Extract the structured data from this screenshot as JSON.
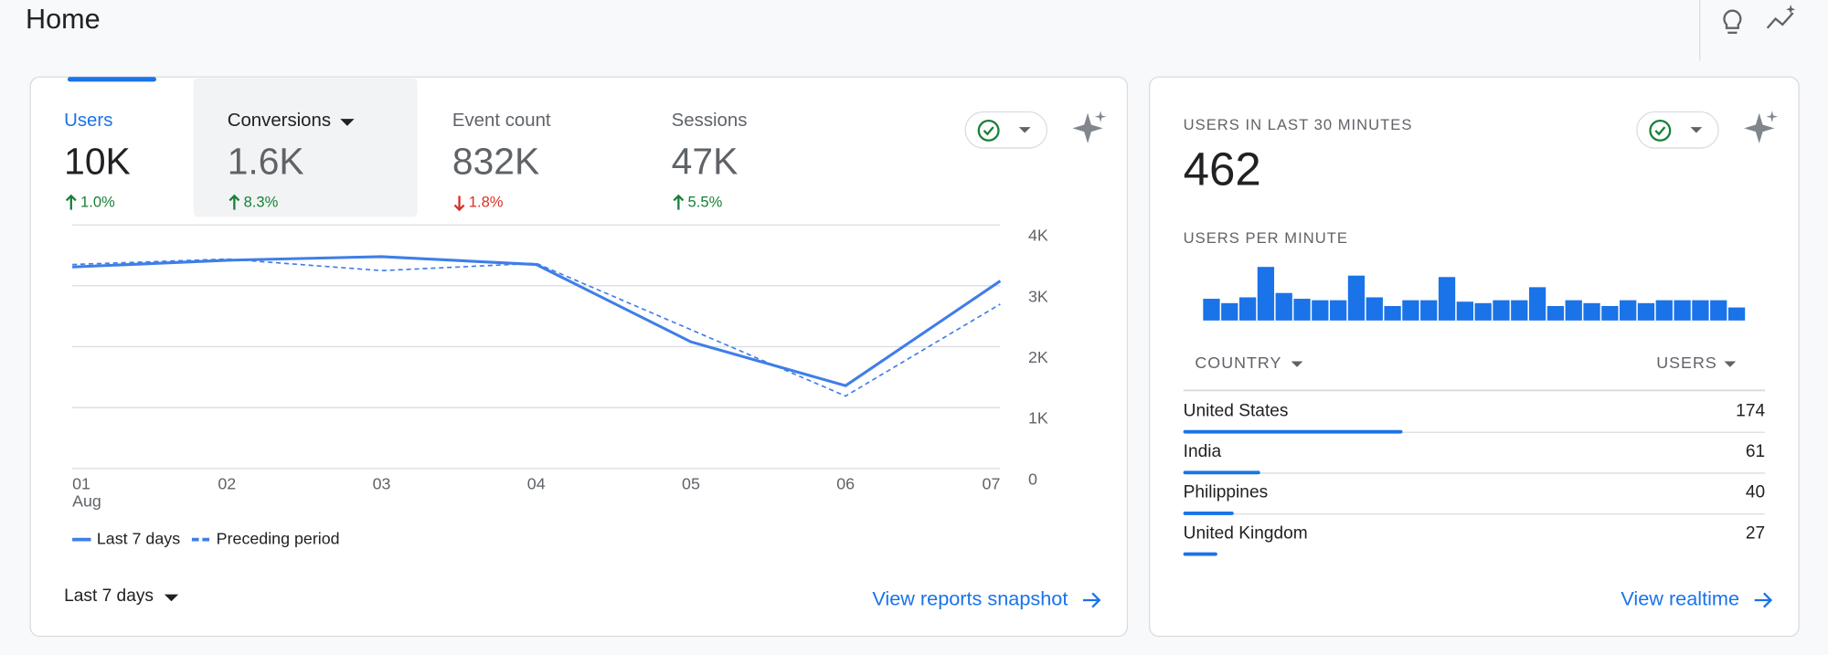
{
  "header": {
    "title": "Home"
  },
  "overview_card": {
    "metrics": [
      {
        "label": "Users",
        "value": "10K",
        "change": "1.0%",
        "direction": "up",
        "active": true
      },
      {
        "label": "Conversions",
        "value": "1.6K",
        "change": "8.3%",
        "direction": "up",
        "hovered": true
      },
      {
        "label": "Event count",
        "value": "832K",
        "change": "1.8%",
        "direction": "down"
      },
      {
        "label": "Sessions",
        "value": "47K",
        "change": "5.5%",
        "direction": "up"
      }
    ],
    "chart_data": {
      "type": "line",
      "categories": [
        "01",
        "02",
        "03",
        "04",
        "05",
        "06",
        "07"
      ],
      "month_label": "Aug",
      "series": [
        {
          "name": "Last 7 days",
          "color": "#3f7ee8",
          "style": "solid",
          "values": [
            3310,
            3420,
            3480,
            3350,
            2080,
            1360,
            3080
          ]
        },
        {
          "name": "Preceding period",
          "color": "#3f7ee8",
          "style": "dashed",
          "values": [
            3350,
            3440,
            3250,
            3370,
            2280,
            1190,
            2700
          ]
        }
      ],
      "ylim": [
        0,
        4000
      ],
      "yticks": [
        0,
        {
          "value": 1000,
          "label": "1K"
        },
        {
          "value": 2000,
          "label": "2K"
        },
        {
          "value": 3000,
          "label": "3K"
        },
        {
          "value": 4000,
          "label": "4K"
        }
      ],
      "grid": true
    },
    "date_range": "Last 7 days",
    "link": "View reports snapshot"
  },
  "realtime_card": {
    "title": "USERS IN LAST 30 MINUTES",
    "value": "462",
    "chart_data": {
      "type": "bar",
      "title": "USERS PER MINUTE",
      "color": "#1a73e8",
      "values": [
        15,
        12,
        16,
        37,
        19,
        15,
        14,
        14,
        31,
        16,
        10,
        14,
        14,
        30,
        13,
        12,
        14,
        14,
        23,
        10,
        14,
        12,
        10,
        14,
        12,
        14,
        14,
        14,
        14,
        9
      ]
    },
    "table": {
      "columns": [
        "COUNTRY",
        "USERS"
      ],
      "rows": [
        [
          "United States",
          174
        ],
        [
          "India",
          61
        ],
        [
          "Philippines",
          40
        ],
        [
          "United Kingdom",
          27
        ]
      ],
      "bar_color": "#1a73e8"
    },
    "link": "View realtime"
  }
}
